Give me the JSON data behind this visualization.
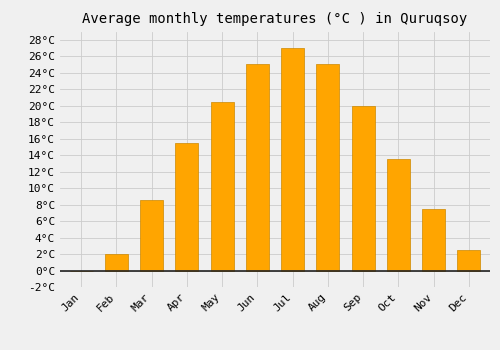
{
  "title": "Average monthly temperatures (°C ) in Quruqsoy",
  "months": [
    "Jan",
    "Feb",
    "Mar",
    "Apr",
    "May",
    "Jun",
    "Jul",
    "Aug",
    "Sep",
    "Oct",
    "Nov",
    "Dec"
  ],
  "values": [
    0,
    2,
    8.5,
    15.5,
    20.5,
    25,
    27,
    25,
    20,
    13.5,
    7.5,
    2.5
  ],
  "bar_color": "#FFA500",
  "bar_edge_color": "#CC8800",
  "background_color": "#F0F0F0",
  "grid_color": "#CCCCCC",
  "ylim": [
    -2,
    29
  ],
  "yticks": [
    -2,
    0,
    2,
    4,
    6,
    8,
    10,
    12,
    14,
    16,
    18,
    20,
    22,
    24,
    26,
    28
  ],
  "title_fontsize": 10,
  "tick_fontsize": 8,
  "zero_line_color": "#222222"
}
